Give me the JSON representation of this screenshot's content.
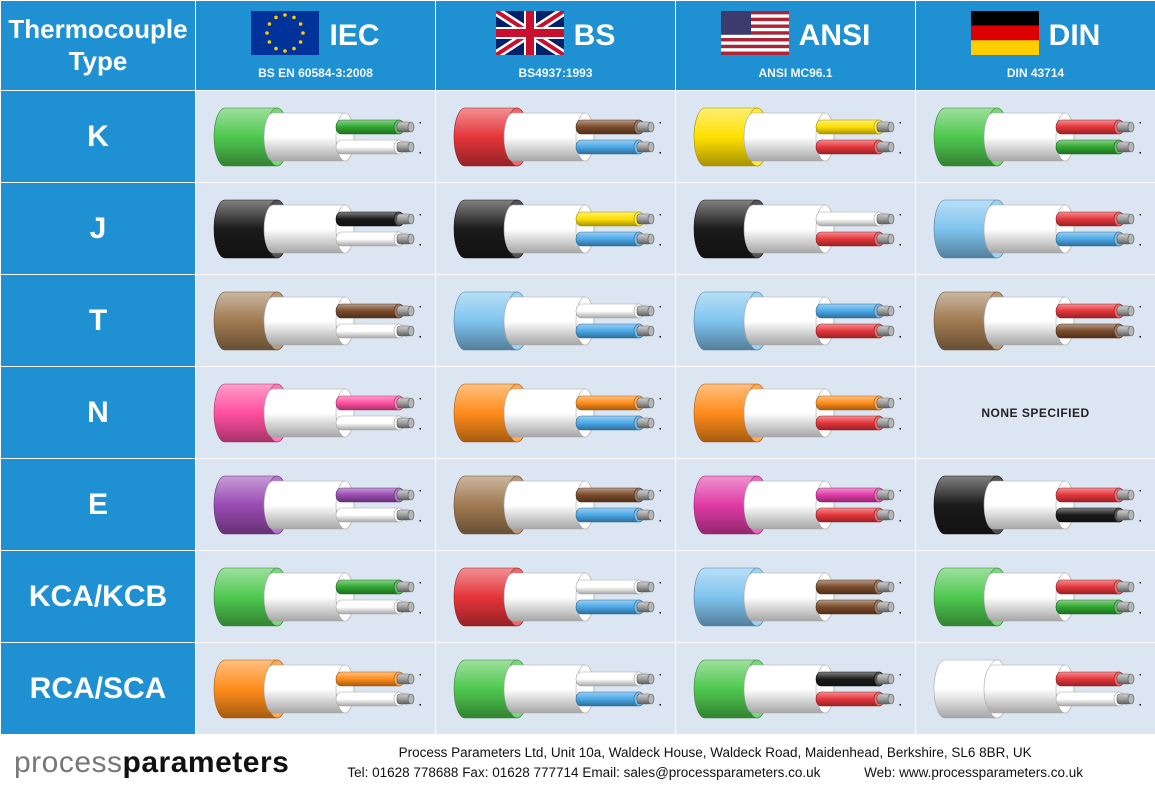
{
  "header": {
    "type_label_line1": "Thermocouple",
    "type_label_line2": "Type"
  },
  "polarity": {
    "plus": "+",
    "minus": "-"
  },
  "cable_render": {
    "conductor": "#9e9e9e",
    "conductor_edge": "#5a5a5a",
    "outer_width": 52,
    "inner_width": 72,
    "wire_width": 58,
    "height": 64
  },
  "standards": [
    {
      "key": "iec",
      "name": "IEC",
      "sub": "BS EN 60584-3:2008",
      "flag": "eu"
    },
    {
      "key": "bs",
      "name": "BS",
      "sub": "BS4937:1993",
      "flag": "uk"
    },
    {
      "key": "ansi",
      "name": "ANSI",
      "sub": "ANSI MC96.1",
      "flag": "us"
    },
    {
      "key": "din",
      "name": "DIN",
      "sub": "DIN 43714",
      "flag": "de"
    }
  ],
  "types": [
    {
      "key": "k",
      "label": "K"
    },
    {
      "key": "j",
      "label": "J"
    },
    {
      "key": "t",
      "label": "T"
    },
    {
      "key": "n",
      "label": "N"
    },
    {
      "key": "e",
      "label": "E"
    },
    {
      "key": "kca",
      "label": "KCA/KCB"
    },
    {
      "key": "rca",
      "label": "RCA/SCA"
    }
  ],
  "none_text": "NONE SPECIFIED",
  "cells": {
    "k": {
      "iec": {
        "outer": "#4fc84f",
        "pos": "#2fa82f",
        "neg": "#ffffff"
      },
      "bs": {
        "outer": "#e5353a",
        "pos": "#7a4a2a",
        "neg": "#4aa8e8"
      },
      "ansi": {
        "outer": "#ffe000",
        "pos": "#ffe000",
        "neg": "#e5353a"
      },
      "din": {
        "outer": "#4fc84f",
        "pos": "#e5353a",
        "neg": "#2fa82f"
      }
    },
    "j": {
      "iec": {
        "outer": "#1a1a1a",
        "pos": "#1a1a1a",
        "neg": "#ffffff"
      },
      "bs": {
        "outer": "#1a1a1a",
        "pos": "#ffe000",
        "neg": "#4aa8e8"
      },
      "ansi": {
        "outer": "#1a1a1a",
        "pos": "#ffffff",
        "neg": "#e5353a"
      },
      "din": {
        "outer": "#7fc4ee",
        "pos": "#e5353a",
        "neg": "#4aa8e8"
      }
    },
    "t": {
      "iec": {
        "outer": "#a07a52",
        "pos": "#7a4a2a",
        "neg": "#ffffff"
      },
      "bs": {
        "outer": "#7fc4ee",
        "pos": "#ffffff",
        "neg": "#4aa8e8"
      },
      "ansi": {
        "outer": "#7fc4ee",
        "pos": "#4aa8e8",
        "neg": "#e5353a"
      },
      "din": {
        "outer": "#a07a52",
        "pos": "#e5353a",
        "neg": "#7a4a2a"
      }
    },
    "n": {
      "iec": {
        "outer": "#ff4fa0",
        "pos": "#ff4fa0",
        "neg": "#ffffff"
      },
      "bs": {
        "outer": "#ff8c1a",
        "pos": "#ff8c1a",
        "neg": "#4aa8e8"
      },
      "ansi": {
        "outer": "#ff8c1a",
        "pos": "#ff8c1a",
        "neg": "#e5353a"
      },
      "din": {
        "none": true
      }
    },
    "e": {
      "iec": {
        "outer": "#9a4bb3",
        "pos": "#9a4bb3",
        "neg": "#ffffff"
      },
      "bs": {
        "outer": "#a07a52",
        "pos": "#7a4a2a",
        "neg": "#4aa8e8"
      },
      "ansi": {
        "outer": "#e03aa7",
        "pos": "#e03aa7",
        "neg": "#e5353a"
      },
      "din": {
        "outer": "#1a1a1a",
        "pos": "#e5353a",
        "neg": "#1a1a1a"
      }
    },
    "kca": {
      "iec": {
        "outer": "#4fc84f",
        "pos": "#2fa82f",
        "neg": "#ffffff"
      },
      "bs": {
        "outer": "#e5353a",
        "pos": "#ffffff",
        "neg": "#4aa8e8"
      },
      "ansi": {
        "outer": "#7fc4ee",
        "pos": "#7a4a2a",
        "neg": "#7a4a2a"
      },
      "din": {
        "outer": "#4fc84f",
        "pos": "#e5353a",
        "neg": "#2fa82f"
      }
    },
    "rca": {
      "iec": {
        "outer": "#ff8c1a",
        "pos": "#ff8c1a",
        "neg": "#ffffff"
      },
      "bs": {
        "outer": "#4fc84f",
        "pos": "#ffffff",
        "neg": "#4aa8e8"
      },
      "ansi": {
        "outer": "#4fc84f",
        "pos": "#1a1a1a",
        "neg": "#e5353a"
      },
      "din": {
        "outer": "#ffffff",
        "pos": "#e5353a",
        "neg": "#ffffff"
      }
    }
  },
  "flags": {
    "eu": {
      "bg": "#003399",
      "stars": "#ffcc00"
    },
    "uk": {
      "bg": "#012169",
      "red": "#c8102e",
      "white": "#ffffff"
    },
    "us": {
      "blue": "#3c3b6e",
      "red": "#b22234",
      "white": "#ffffff"
    },
    "de": {
      "black": "#000000",
      "red": "#dd0000",
      "gold": "#ffce00"
    }
  },
  "footer": {
    "logo_thin": "process",
    "logo_bold": "parameters",
    "addr": "Process Parameters Ltd, Unit 10a, Waldeck House, Waldeck Road, Maidenhead, Berkshire, SL6 8BR, UK",
    "tel_label": "Tel: ",
    "tel": "01628 778688",
    "fax_label": " Fax: ",
    "fax": "01628 777714",
    "email_label": "Email: ",
    "email": "sales@processparameters.co.uk",
    "web_label": "Web: ",
    "web": "www.processparameters.co.uk"
  }
}
